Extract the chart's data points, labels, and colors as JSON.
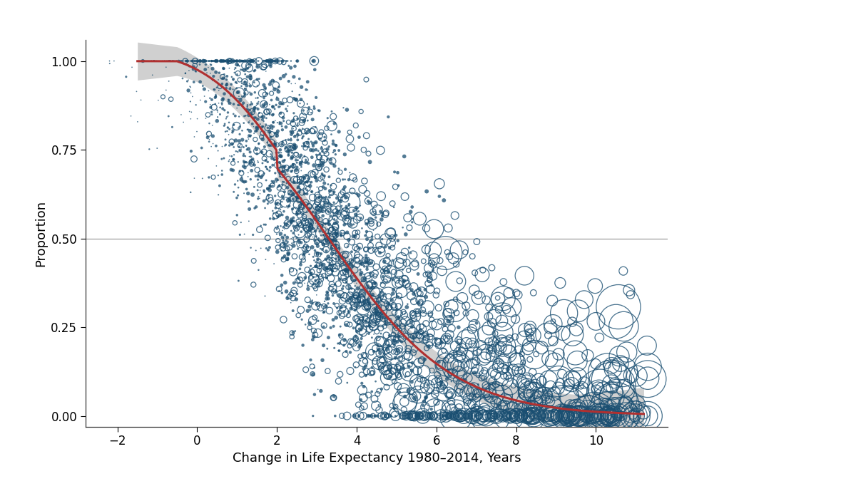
{
  "xlabel": "Change in Life Expectancy 1980–2014, Years",
  "ylabel": "Proportion",
  "xlim": [
    -2.8,
    11.8
  ],
  "ylim": [
    -0.03,
    1.06
  ],
  "xticks": [
    -2,
    0,
    2,
    4,
    6,
    8,
    10
  ],
  "yticks": [
    0.0,
    0.25,
    0.5,
    0.75,
    1.0
  ],
  "hline_y": 0.5,
  "dot_color": "#1a4f72",
  "curve_color": "#b03030",
  "band_color": "#aaaaaa",
  "background_color": "#ffffff",
  "seed": 99,
  "n_points": 3100,
  "xlabel_fontsize": 13,
  "ylabel_fontsize": 13,
  "tick_fontsize": 12
}
